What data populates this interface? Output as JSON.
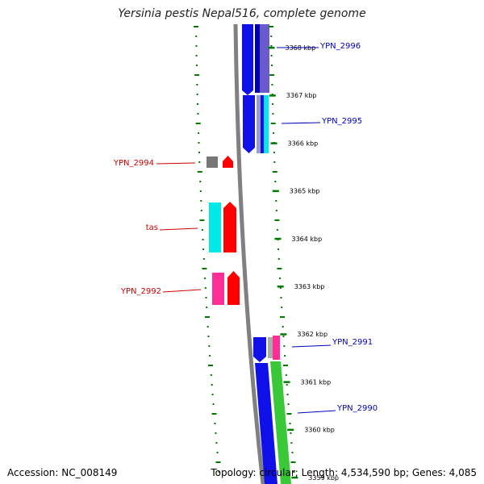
{
  "title": "Yersinia pestis Nepal516, complete genome",
  "accession": "Accession: NC_008149",
  "topology": "Topology: circular; Length: 4,534,590 bp; Genes: 4,085",
  "colors": {
    "backbone": "#808080",
    "tick": "#007a00",
    "label_forward": "#cc0000",
    "label_reverse": "#0000bb",
    "blue": "#1010e8",
    "purple": "#6a5acd",
    "cyan": "#00e8e8",
    "red": "#ff0000",
    "gray": "#777777",
    "pink": "#ff2d96",
    "green": "#38c838"
  },
  "ticks": [
    {
      "label": "3368 kbp"
    },
    {
      "label": "3367 kbp"
    },
    {
      "label": "3366 kbp"
    },
    {
      "label": "3365 kbp"
    },
    {
      "label": "3364 kbp"
    },
    {
      "label": "3363 kbp"
    },
    {
      "label": "3362 kbp"
    },
    {
      "label": "3361 kbp"
    },
    {
      "label": "3360 kbp"
    },
    {
      "label": "3359 kbp"
    }
  ],
  "genes": [
    {
      "label": "YPN_2996",
      "strand": "reverse"
    },
    {
      "label": "YPN_2995",
      "strand": "reverse"
    },
    {
      "label": "YPN_2994",
      "strand": "forward"
    },
    {
      "label": "tas",
      "strand": "forward"
    },
    {
      "label": "YPN_2992",
      "strand": "forward"
    },
    {
      "label": "YPN_2991",
      "strand": "reverse"
    },
    {
      "label": "YPN_2990",
      "strand": "reverse"
    }
  ]
}
